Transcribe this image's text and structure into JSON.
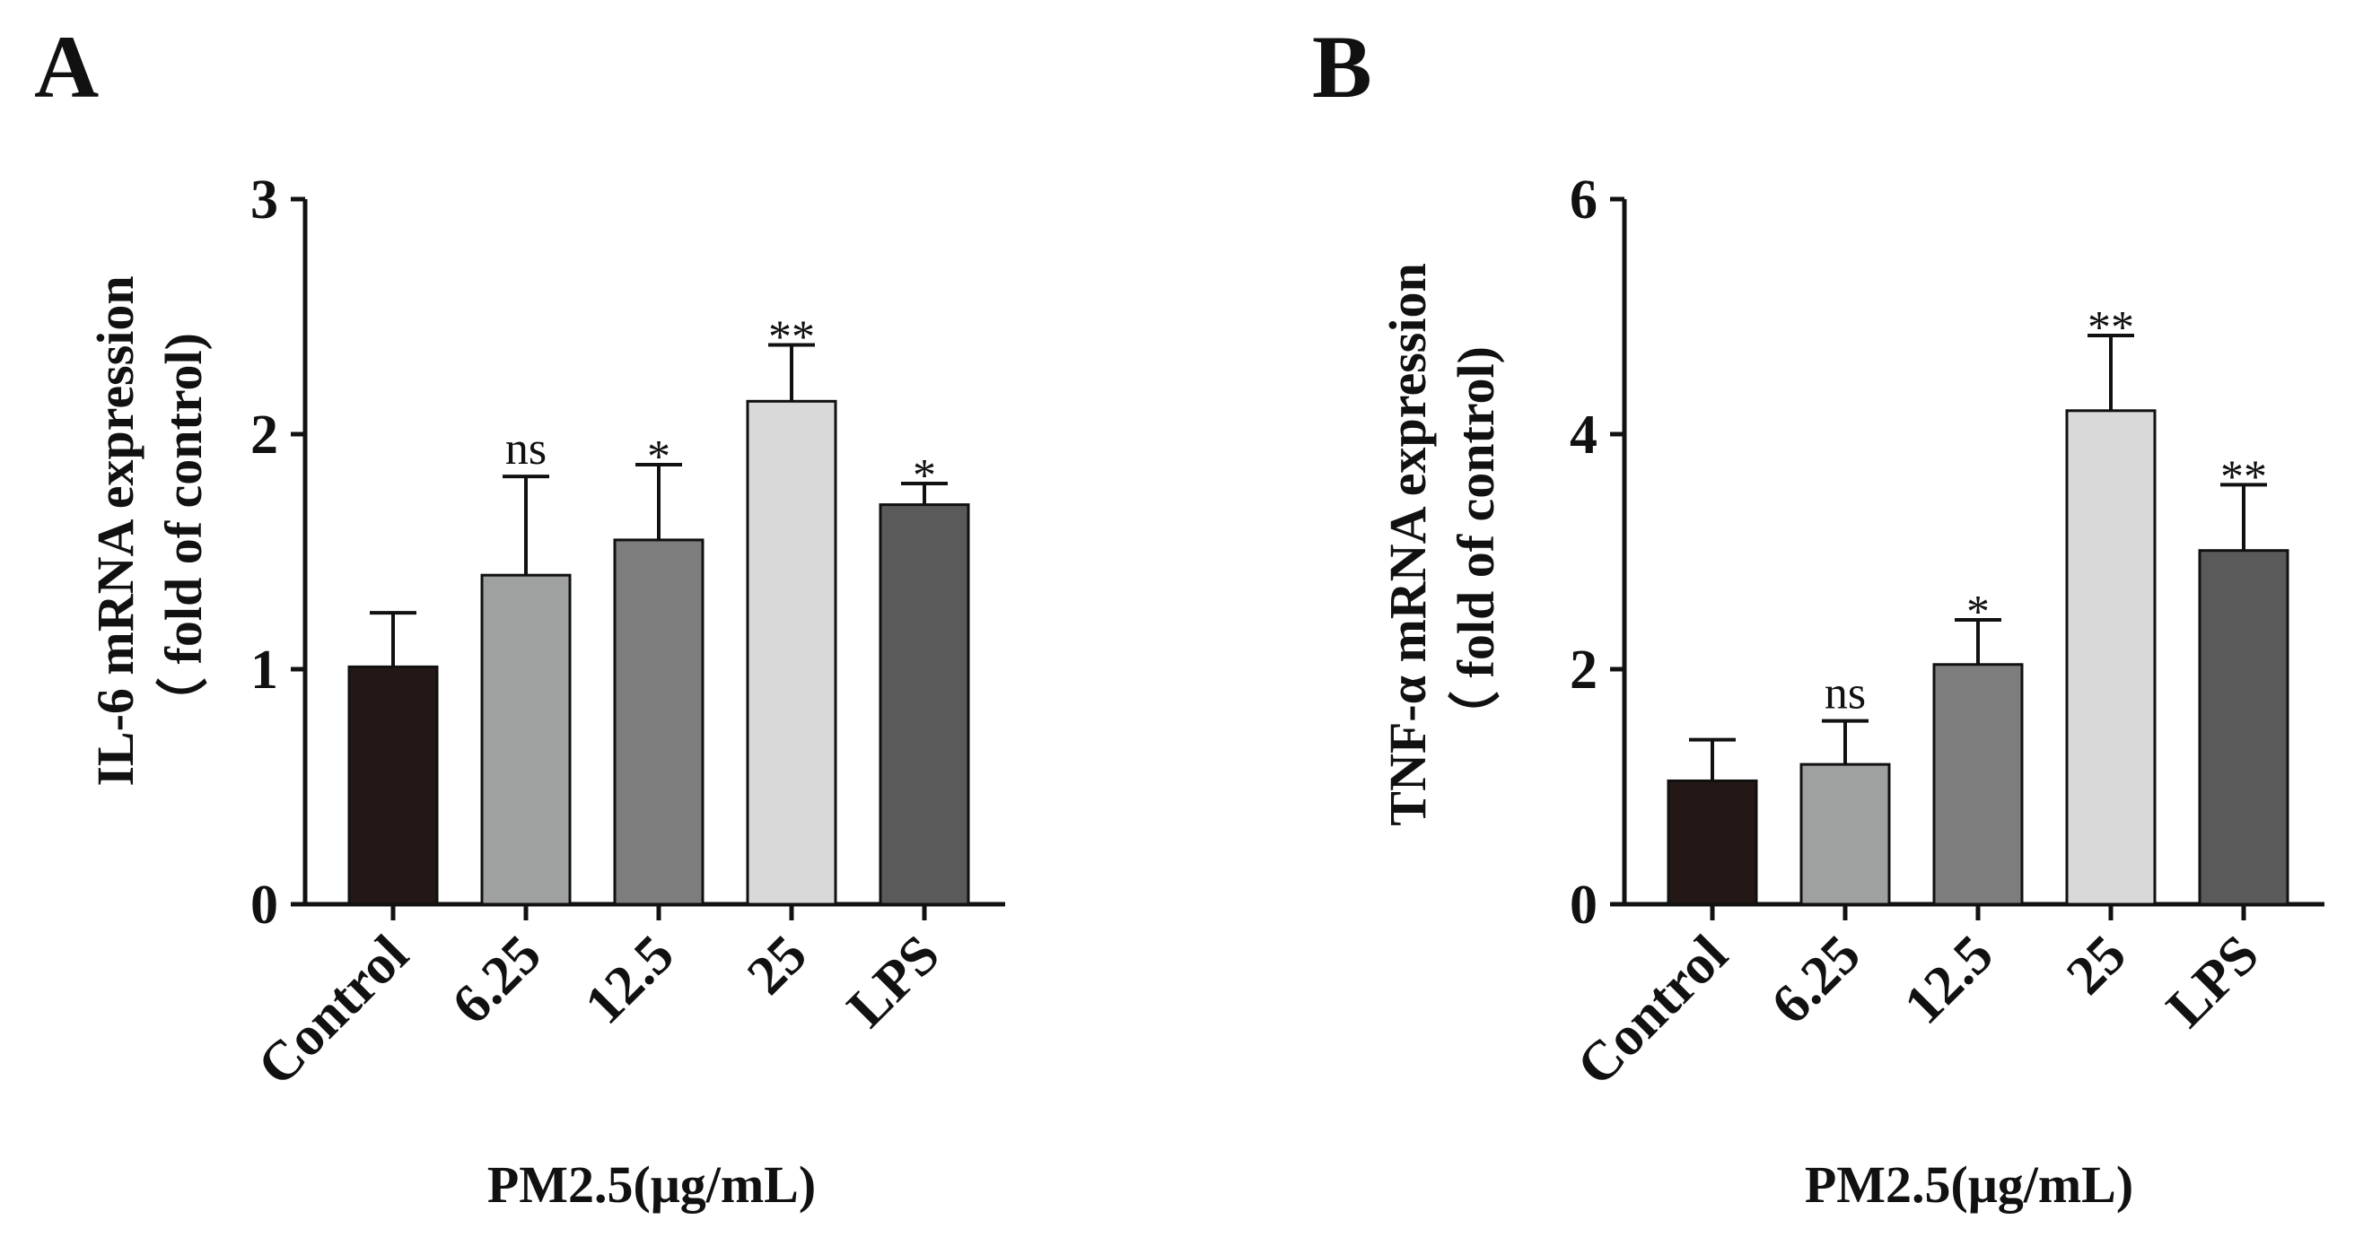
{
  "chart_data": [
    {
      "panel": "A",
      "type": "bar",
      "categories": [
        "Control",
        "6.25",
        "12.5",
        "25",
        "LPS"
      ],
      "values": [
        1.01,
        1.4,
        1.55,
        2.14,
        1.7
      ],
      "errors": [
        0.23,
        0.42,
        0.32,
        0.24,
        0.09
      ],
      "significance": [
        "",
        "ns",
        "*",
        "**",
        "*"
      ],
      "colors": [
        "#231815",
        "#9fa0a0",
        "#7d7d7d",
        "#d9d9d9",
        "#5a5a5a"
      ],
      "ylabel_line1": "IL-6 mRNA expression",
      "ylabel_line2": "（ fold of control)",
      "xlabel": "PM2.5(μg/mL)",
      "ylim": [
        0,
        3
      ],
      "yticks": [
        0,
        1,
        2,
        3
      ]
    },
    {
      "panel": "B",
      "type": "bar",
      "categories": [
        "Control",
        "6.25",
        "12.5",
        "25",
        "LPS"
      ],
      "values": [
        1.05,
        1.19,
        2.04,
        4.2,
        3.01
      ],
      "errors": [
        0.35,
        0.37,
        0.38,
        0.64,
        0.56
      ],
      "significance": [
        "",
        "ns",
        "*",
        "**",
        "**"
      ],
      "colors": [
        "#231815",
        "#9fa0a0",
        "#7d7d7d",
        "#d9d9d9",
        "#5a5a5a"
      ],
      "ylabel_line1": "TNF-α mRNA expression",
      "ylabel_line2": "（ fold of control)",
      "xlabel": "PM2.5(μg/mL)",
      "ylim": [
        0,
        6
      ],
      "yticks": [
        0,
        2,
        4,
        6
      ]
    }
  ]
}
